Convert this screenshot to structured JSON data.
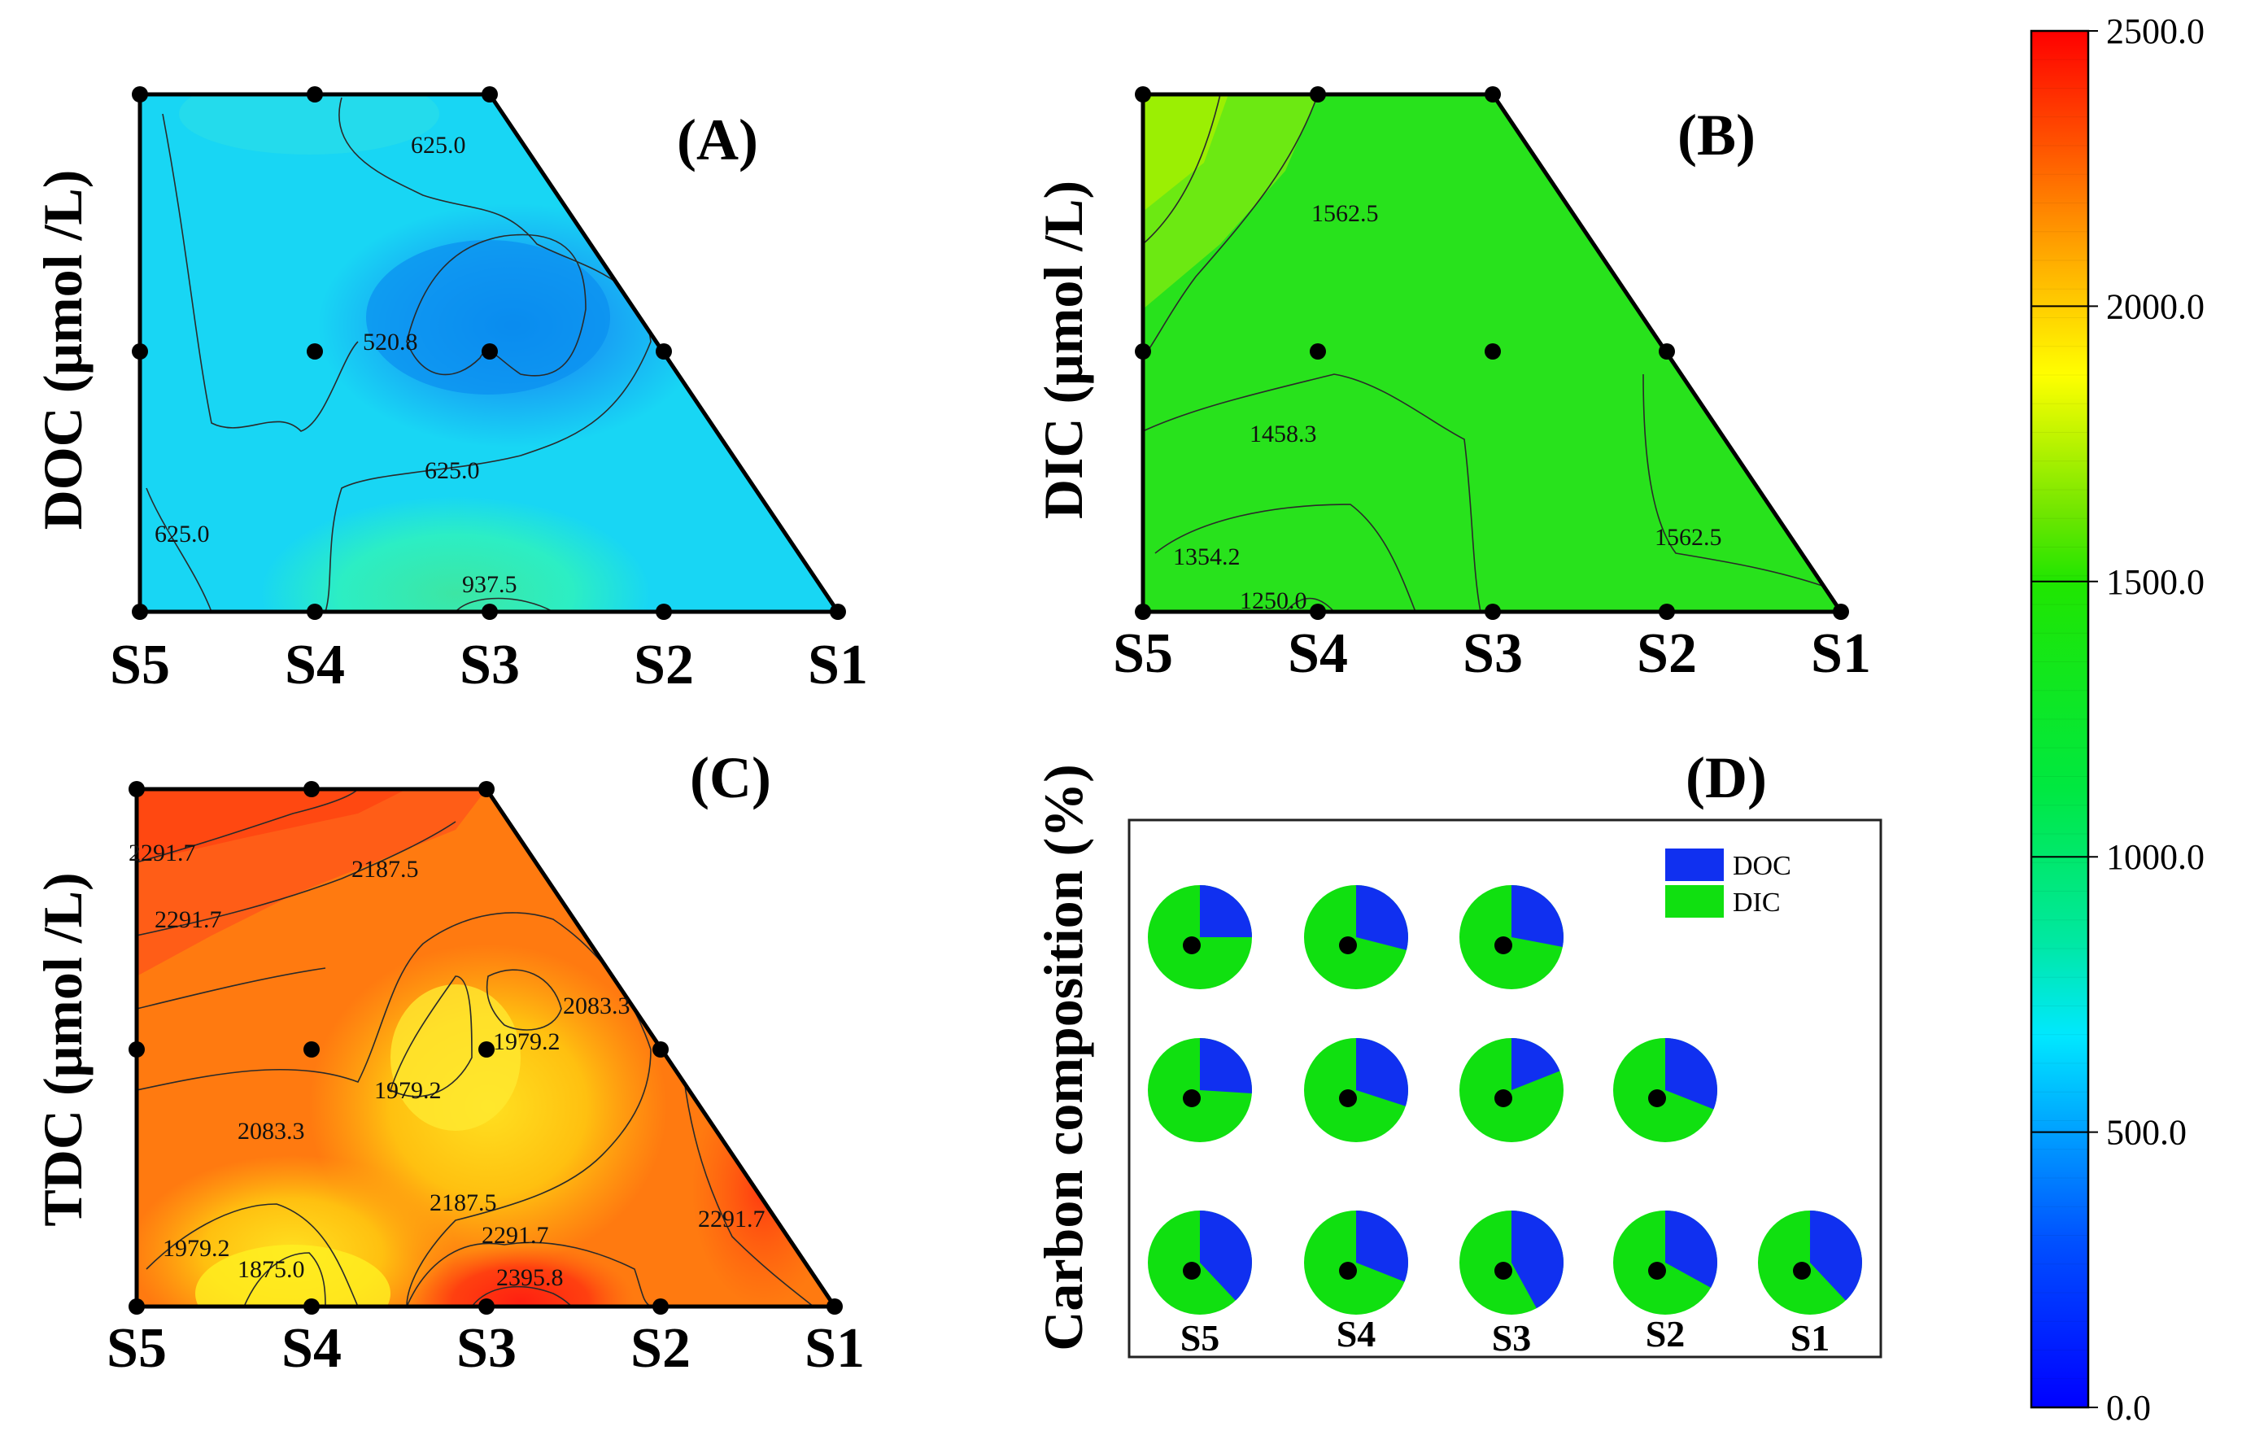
{
  "colorbar": {
    "ticks": [
      "0.0",
      "500.0",
      "1000.0",
      "1500.0",
      "2000.0",
      "2500.0"
    ],
    "min": 0,
    "max": 2500,
    "stops": [
      "#0000ff",
      "#0078ff",
      "#00dcff",
      "#00e87a",
      "#00e61c",
      "#52e600",
      "#ffff00",
      "#ffb000",
      "#ff5000",
      "#ff0000"
    ]
  },
  "chart_data": [
    {
      "type": "contour",
      "panel": "(A)",
      "ylabel": "DOC (μmol /L)",
      "x_ticks": [
        "S5",
        "S4",
        "S3",
        "S2",
        "S1"
      ],
      "contour_labels": [
        "625.0",
        "520.8",
        "625.0",
        "625.0",
        "937.5"
      ],
      "sample_points": [
        [
          "S5",
          "top"
        ],
        [
          "S4",
          "top"
        ],
        [
          "S3",
          "top"
        ],
        [
          "S5",
          "mid"
        ],
        [
          "S4",
          "mid"
        ],
        [
          "S3",
          "mid"
        ],
        [
          "S2",
          "mid"
        ],
        [
          "S5",
          "bottom"
        ],
        [
          "S4",
          "bottom"
        ],
        [
          "S3",
          "bottom"
        ],
        [
          "S2",
          "bottom"
        ],
        [
          "S1",
          "bottom"
        ]
      ],
      "approx_values": {
        "background": 700,
        "min_region": 520.8,
        "max_region": 937.5
      }
    },
    {
      "type": "contour",
      "panel": "(B)",
      "ylabel": "DIC (μmol /L)",
      "x_ticks": [
        "S5",
        "S4",
        "S3",
        "S2",
        "S1"
      ],
      "contour_labels": [
        "1562.5",
        "1458.3",
        "1354.2",
        "1250.0",
        "1562.5"
      ],
      "approx_values": {
        "background": 1500,
        "max_region": 1700,
        "min_region": 1250.0
      }
    },
    {
      "type": "contour",
      "panel": "(C)",
      "ylabel": "TDC (μmol /L)",
      "x_ticks": [
        "S5",
        "S4",
        "S3",
        "S2",
        "S1"
      ],
      "contour_labels": [
        "2291.7",
        "2187.5",
        "2291.7",
        "2083.3",
        "1979.2",
        "1979.2",
        "2083.3",
        "2187.5",
        "2291.7",
        "2291.7",
        "1979.2",
        "1875.0",
        "2395.8"
      ],
      "approx_values": {
        "background": 2250,
        "min_region": 1875.0,
        "max_region": 2395.8
      }
    },
    {
      "type": "pie",
      "panel": "(D)",
      "ylabel": "Carbon composition (%)",
      "x_ticks": [
        "S5",
        "S4",
        "S3",
        "S2",
        "S1"
      ],
      "legend": [
        {
          "name": "DOC",
          "color": "#1030f0"
        },
        {
          "name": "DIC",
          "color": "#10e010"
        }
      ],
      "rows": [
        {
          "level": "top",
          "doc_percent": [
            25,
            29,
            28
          ]
        },
        {
          "level": "middle",
          "doc_percent": [
            26,
            30,
            19,
            31
          ]
        },
        {
          "level": "bottom",
          "doc_percent": [
            38,
            31,
            42,
            33,
            38
          ]
        }
      ]
    }
  ]
}
